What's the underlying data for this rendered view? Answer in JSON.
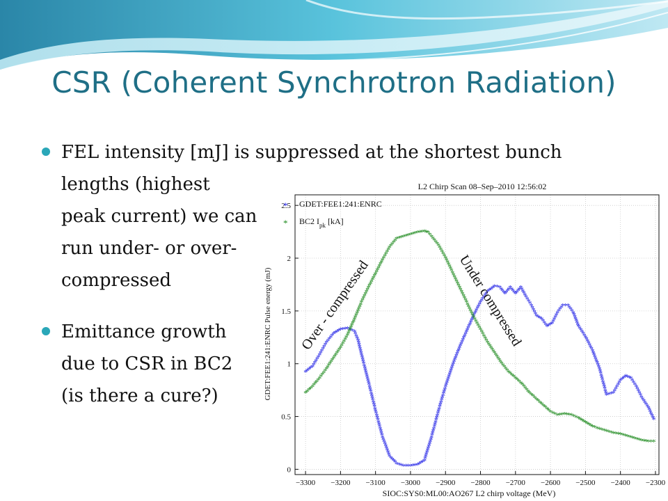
{
  "slide": {
    "title": "CSR (Coherent Synchrotron Radiation)",
    "bullets": [
      {
        "lines": [
          "FEL intensity [mJ] is suppressed at the shortest bunch",
          "lengths (highest",
          "peak current) we can",
          "run under- or over-",
          "compressed"
        ]
      },
      {
        "lines": [
          "Emittance growth",
          "due to CSR in BC2",
          "(is there a cure?)"
        ]
      }
    ]
  },
  "colors": {
    "title": "#1f6f86",
    "bullet": "#2aa7b8",
    "series_blue": "#1f1fe6",
    "series_green": "#1e8a1e"
  },
  "chart_data": {
    "type": "scatter",
    "title": "L2 Chirp Scan 08–Sep–2010 12:56:02",
    "xlabel": "SIOC:SYS0:ML00:AO267 L2 chirp voltage (MeV)",
    "ylabel": "GDET:FEE1:241:ENRC Pulse energy (mJ)",
    "xlim": [
      -3330,
      -2290
    ],
    "ylim": [
      -0.05,
      2.6
    ],
    "xticks": [
      -3300,
      -3200,
      -3100,
      -3000,
      -2900,
      -2800,
      -2700,
      -2600,
      -2500,
      -2400,
      -2300
    ],
    "xtick_labels": [
      "−3300",
      "−3200",
      "−3100",
      "−3000",
      "−2900",
      "−2800",
      "−2700",
      "−2600",
      "−2500",
      "−2400",
      "−2300"
    ],
    "yticks": [
      0,
      0.5,
      1,
      1.5,
      2,
      2.5
    ],
    "ytick_labels": [
      "0",
      "0.5",
      "1",
      "1.5",
      "2",
      "2.5"
    ],
    "grid": true,
    "legend_position": "top-left",
    "annotations": [
      "Over - compressed",
      "Under compressed"
    ],
    "series": [
      {
        "name": "GDET:FEE1:241:ENRC",
        "color": "#1f1fe6",
        "x": [
          -3300,
          -3280,
          -3260,
          -3240,
          -3220,
          -3200,
          -3180,
          -3160,
          -3150,
          -3140,
          -3120,
          -3100,
          -3080,
          -3060,
          -3040,
          -3020,
          -3000,
          -2980,
          -2960,
          -2940,
          -2920,
          -2900,
          -2880,
          -2860,
          -2840,
          -2820,
          -2800,
          -2780,
          -2760,
          -2745,
          -2730,
          -2715,
          -2700,
          -2685,
          -2670,
          -2655,
          -2640,
          -2625,
          -2610,
          -2595,
          -2580,
          -2565,
          -2550,
          -2535,
          -2520,
          -2500,
          -2480,
          -2460,
          -2440,
          -2420,
          -2400,
          -2385,
          -2370,
          -2355,
          -2340,
          -2320,
          -2305
        ],
        "y": [
          0.92,
          0.97,
          1.08,
          1.2,
          1.28,
          1.32,
          1.33,
          1.3,
          1.22,
          1.08,
          0.82,
          0.55,
          0.3,
          0.12,
          0.05,
          0.03,
          0.03,
          0.04,
          0.08,
          0.3,
          0.55,
          0.78,
          0.98,
          1.15,
          1.3,
          1.45,
          1.58,
          1.68,
          1.73,
          1.72,
          1.66,
          1.72,
          1.66,
          1.72,
          1.63,
          1.55,
          1.45,
          1.42,
          1.35,
          1.38,
          1.48,
          1.55,
          1.55,
          1.48,
          1.35,
          1.25,
          1.12,
          0.95,
          0.7,
          0.72,
          0.84,
          0.88,
          0.86,
          0.78,
          0.68,
          0.58,
          0.47
        ]
      },
      {
        "name": "BC2 I_pk [kA]",
        "color": "#1e8a1e",
        "x": [
          -3300,
          -3280,
          -3260,
          -3240,
          -3220,
          -3200,
          -3180,
          -3160,
          -3140,
          -3120,
          -3100,
          -3080,
          -3060,
          -3040,
          -3020,
          -3000,
          -2980,
          -2960,
          -2950,
          -2940,
          -2920,
          -2900,
          -2880,
          -2860,
          -2840,
          -2820,
          -2800,
          -2780,
          -2760,
          -2740,
          -2720,
          -2700,
          -2680,
          -2660,
          -2640,
          -2620,
          -2600,
          -2580,
          -2560,
          -2540,
          -2520,
          -2500,
          -2480,
          -2460,
          -2440,
          -2420,
          -2400,
          -2380,
          -2360,
          -2340,
          -2320,
          -2305
        ],
        "y": [
          0.72,
          0.78,
          0.86,
          0.95,
          1.05,
          1.15,
          1.27,
          1.42,
          1.58,
          1.72,
          1.85,
          1.98,
          2.1,
          2.18,
          2.2,
          2.22,
          2.24,
          2.25,
          2.24,
          2.2,
          2.12,
          2.0,
          1.86,
          1.72,
          1.58,
          1.44,
          1.32,
          1.2,
          1.1,
          1.0,
          0.92,
          0.86,
          0.8,
          0.72,
          0.66,
          0.6,
          0.54,
          0.51,
          0.52,
          0.51,
          0.48,
          0.44,
          0.4,
          0.38,
          0.36,
          0.34,
          0.33,
          0.31,
          0.29,
          0.27,
          0.26,
          0.26
        ]
      }
    ]
  }
}
